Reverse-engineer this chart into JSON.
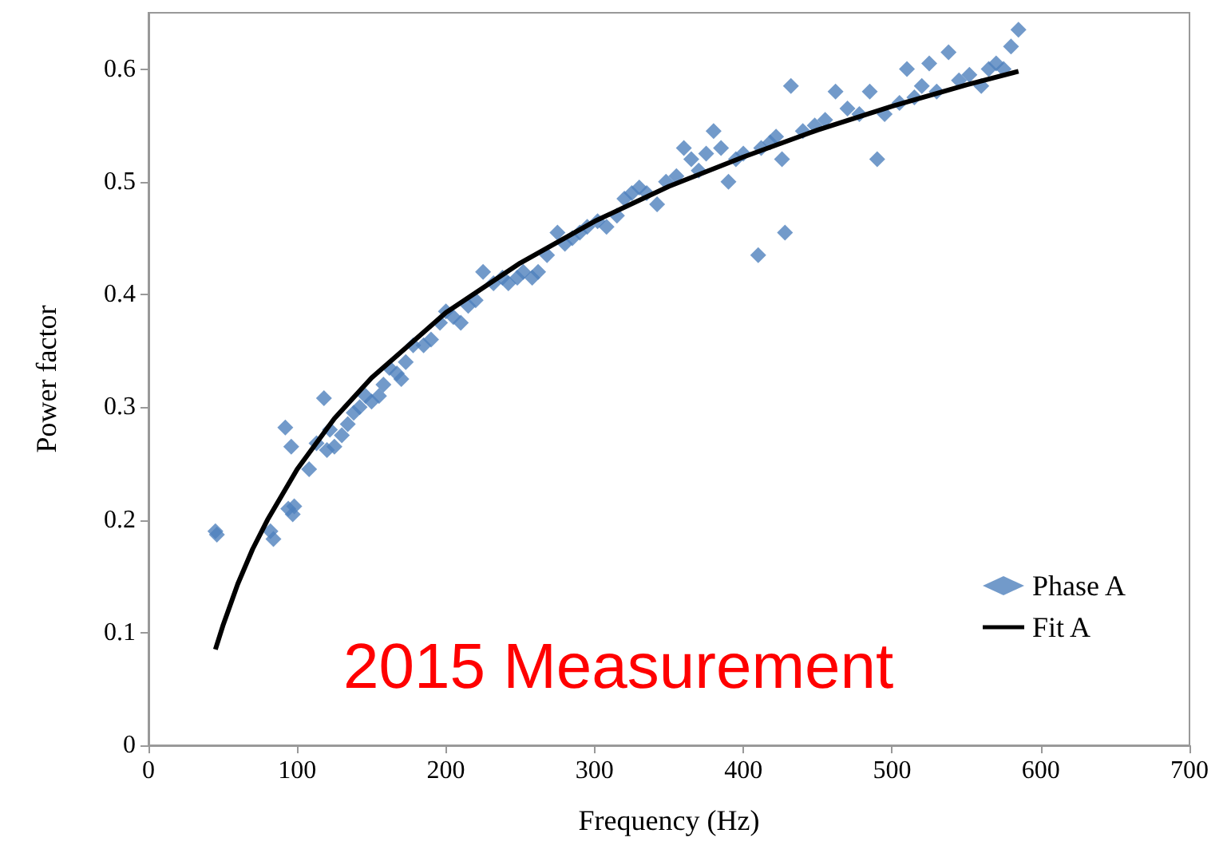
{
  "chart_data": {
    "type": "scatter",
    "xlabel": "Frequency (Hz)",
    "ylabel": "Power factor",
    "xlim": [
      0,
      700
    ],
    "xticks": [
      0,
      100,
      200,
      300,
      400,
      500,
      600,
      700
    ],
    "ylim": [
      0,
      0.65
    ],
    "yticks": [
      0,
      0.1,
      0.2,
      0.3,
      0.4,
      0.5,
      0.6
    ],
    "grid": false,
    "legend": "bottom right",
    "marker": "diamond",
    "annotations": [
      "2015 Measurement"
    ],
    "series": [
      {
        "name": "Phase A",
        "color": "#4f81bd",
        "x": [
          45,
          46,
          82,
          84,
          92,
          94,
          96,
          97,
          98,
          108,
          113,
          118,
          120,
          122,
          125,
          130,
          134,
          138,
          142,
          146,
          150,
          155,
          158,
          162,
          167,
          170,
          173,
          178,
          185,
          190,
          196,
          200,
          205,
          210,
          215,
          220,
          225,
          232,
          238,
          242,
          248,
          252,
          258,
          262,
          268,
          275,
          280,
          285,
          290,
          295,
          302,
          308,
          315,
          320,
          325,
          330,
          335,
          342,
          348,
          355,
          360,
          365,
          370,
          375,
          380,
          385,
          390,
          395,
          400,
          410,
          412,
          418,
          422,
          426,
          428,
          432,
          440,
          448,
          455,
          462,
          470,
          478,
          485,
          490,
          495,
          505,
          510,
          515,
          520,
          525,
          530,
          538,
          545,
          552,
          560,
          565,
          570,
          575,
          580,
          585
        ],
        "values": [
          0.19,
          0.187,
          0.19,
          0.183,
          0.282,
          0.21,
          0.265,
          0.205,
          0.212,
          0.245,
          0.268,
          0.308,
          0.262,
          0.28,
          0.265,
          0.275,
          0.285,
          0.295,
          0.3,
          0.31,
          0.305,
          0.31,
          0.32,
          0.335,
          0.33,
          0.325,
          0.34,
          0.355,
          0.355,
          0.36,
          0.375,
          0.385,
          0.38,
          0.375,
          0.39,
          0.395,
          0.42,
          0.41,
          0.415,
          0.41,
          0.415,
          0.42,
          0.415,
          0.42,
          0.435,
          0.455,
          0.445,
          0.45,
          0.455,
          0.46,
          0.465,
          0.46,
          0.47,
          0.485,
          0.49,
          0.495,
          0.49,
          0.48,
          0.5,
          0.505,
          0.53,
          0.52,
          0.51,
          0.525,
          0.545,
          0.53,
          0.5,
          0.52,
          0.525,
          0.435,
          0.53,
          0.535,
          0.54,
          0.52,
          0.455,
          0.585,
          0.545,
          0.55,
          0.555,
          0.58,
          0.565,
          0.56,
          0.58,
          0.52,
          0.56,
          0.57,
          0.6,
          0.575,
          0.585,
          0.605,
          0.58,
          0.615,
          0.59,
          0.595,
          0.585,
          0.6,
          0.605,
          0.6,
          0.62,
          0.635
        ]
      },
      {
        "name": "Fit A",
        "type": "line",
        "color": "#000000",
        "line_style": "solid",
        "marker": "none",
        "x": [
          45,
          50,
          60,
          70,
          80,
          100,
          125,
          150,
          200,
          250,
          300,
          350,
          400,
          450,
          500,
          550,
          585
        ],
        "values": [
          0.085,
          0.106,
          0.143,
          0.174,
          0.2,
          0.245,
          0.29,
          0.326,
          0.384,
          0.428,
          0.465,
          0.496,
          0.522,
          0.546,
          0.567,
          0.586,
          0.598
        ]
      }
    ]
  }
}
